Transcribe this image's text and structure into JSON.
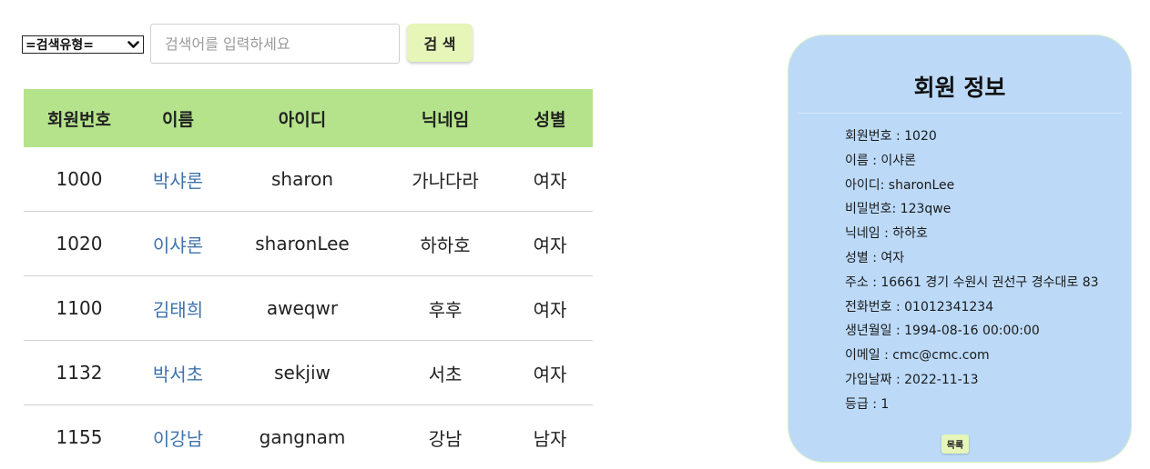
{
  "search": {
    "type_select_label": "=검색유형=",
    "placeholder": "검색어를 입력하세요",
    "value": "",
    "button_label": "검 색"
  },
  "table": {
    "headers": [
      "회원번호",
      "이름",
      "아이디",
      "닉네임",
      "성별"
    ],
    "rows": [
      [
        "1000",
        "박샤론",
        "sharon",
        "가나다라",
        "여자"
      ],
      [
        "1020",
        "이샤론",
        "sharonLee",
        "하하호",
        "여자"
      ],
      [
        "1100",
        "김태희",
        "aweqwr",
        "후후",
        "여자"
      ],
      [
        "1132",
        "박서초",
        "sekjiw",
        "서초",
        "여자"
      ],
      [
        "1155",
        "이강남",
        "gangnam",
        "강남",
        "남자"
      ]
    ]
  },
  "member_info": {
    "title": "회원 정보",
    "fields": [
      "회원번호 : 1020",
      "이름 : 이샤론",
      "아이디: sharonLee",
      "비밀번호: 123qwe",
      "닉네임 : 하하호",
      "성별 : 여자",
      "주소 : 16661 경기 수원시 권선구 경수대로 83",
      "전화번호 : 01012341234",
      "생년월일 : 1994-08-16 00:00:00",
      "이메일 : cmc@cmc.com",
      "가입날짜 : 2022-11-13",
      "등급 : 1"
    ],
    "list_button_label": "목록"
  },
  "colors": {
    "table_header_bg": "#b5e38b",
    "button_bg": "#e6f5b8",
    "card_bg": "#bcdaf8",
    "name_link": "#3f73ad"
  }
}
